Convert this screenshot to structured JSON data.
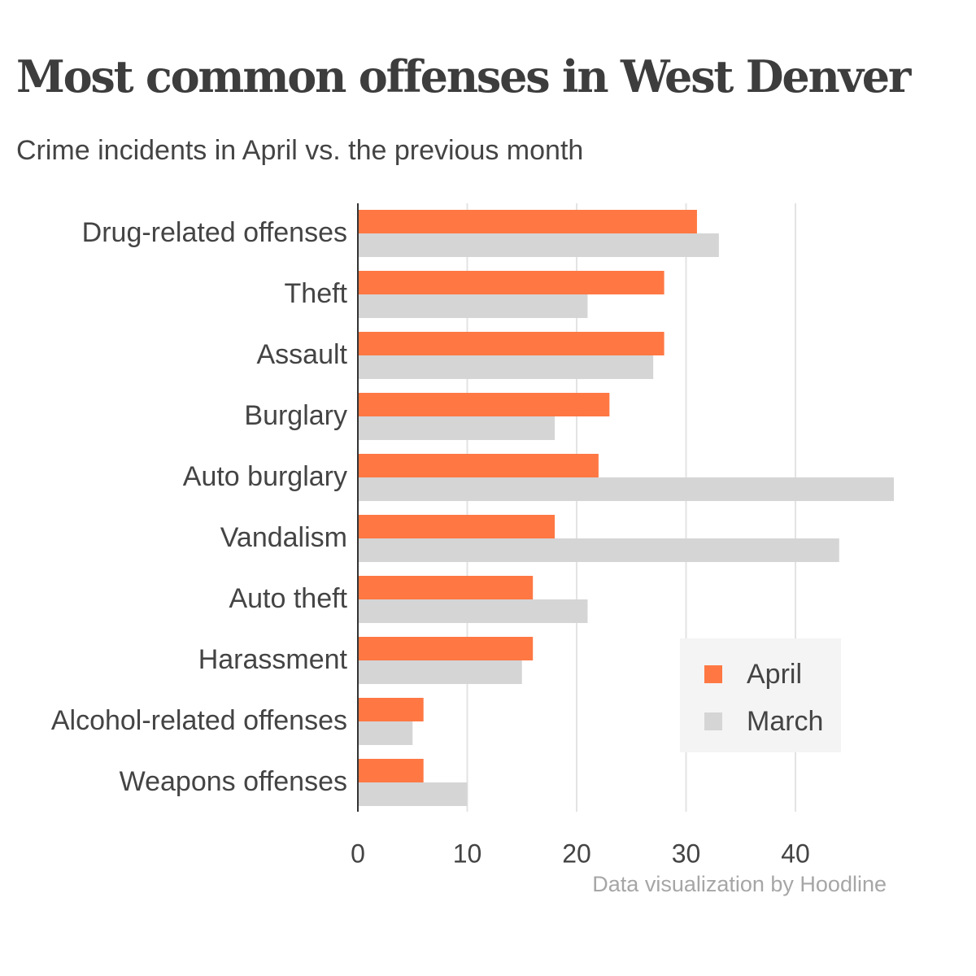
{
  "title": "Most common offenses in West Denver",
  "subtitle": "Crime incidents in April vs. the previous month",
  "credit": "Data visualization by Hoodline",
  "colors": {
    "april": "#ff7843",
    "march": "#d5d5d5",
    "axis": "#333333",
    "grid": "#e3e3e3",
    "text": "#444444"
  },
  "chart_data": {
    "type": "bar",
    "orientation": "horizontal",
    "categories": [
      "Drug-related offenses",
      "Theft",
      "Assault",
      "Burglary",
      "Auto burglary",
      "Vandalism",
      "Auto theft",
      "Harassment",
      "Alcohol-related offenses",
      "Weapons offenses"
    ],
    "series": [
      {
        "name": "April",
        "values": [
          31,
          28,
          28,
          23,
          22,
          18,
          16,
          16,
          6,
          6
        ]
      },
      {
        "name": "March",
        "values": [
          33,
          21,
          27,
          18,
          49,
          44,
          21,
          15,
          5,
          10
        ]
      }
    ],
    "xticks": [
      0,
      10,
      20,
      30,
      40
    ],
    "xlim": [
      0,
      49
    ],
    "grid": true,
    "legend_position": "bottom-right"
  }
}
